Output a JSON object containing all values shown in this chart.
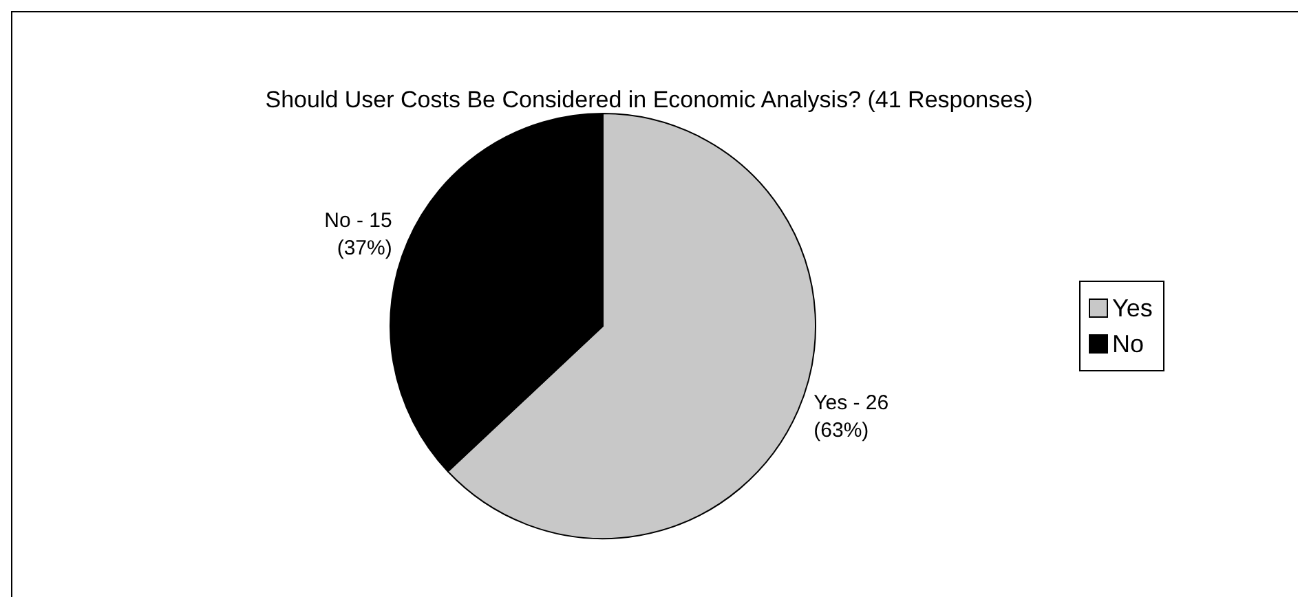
{
  "chart_data": {
    "type": "pie",
    "title": "Should User Costs Be Considered in Economic Analysis? (41 Responses)",
    "categories": [
      "Yes",
      "No"
    ],
    "values": [
      63,
      37
    ],
    "colors": [
      "#c8c8c8",
      "#000000"
    ],
    "annotations": [
      "Yes - 26 (63%)",
      "No - 15 (37%)"
    ],
    "legend": "right"
  }
}
